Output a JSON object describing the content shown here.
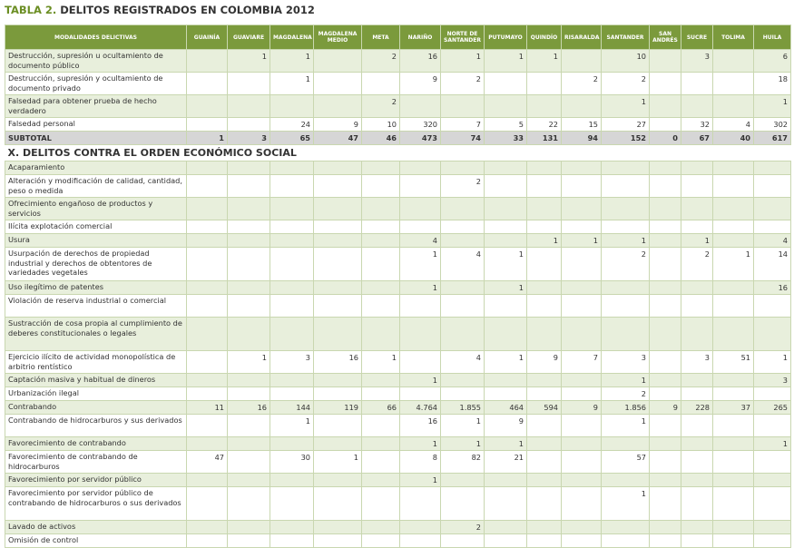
{
  "title": {
    "label": "TABLA 2.",
    "text": "DELITOS REGISTRADOS EN COLOMBIA 2012"
  },
  "table": {
    "header": [
      "MODALIDADES DELICTIVAS",
      "GUAINÍA",
      "GUAVIARE",
      "MAGDALENA",
      "MAGDALENA MEDIO",
      "META",
      "NARIÑO",
      "NORTE DE SANTANDER",
      "PUTUMAYO",
      "QUINDÍO",
      "RISARALDA",
      "SANTANDER",
      "SAN ANDRÉS",
      "SUCRE",
      "TOLIMA",
      "HUILA"
    ],
    "rows": [
      {
        "label": "Destrucción, supresión u ocultamiento de documento público",
        "cells": [
          null,
          "1",
          "1",
          null,
          "2",
          "16",
          "1",
          "1",
          "1",
          null,
          "10",
          null,
          "3",
          null,
          "6"
        ]
      },
      {
        "label": "Destrucción, supresión y ocultamiento de documento privado",
        "cells": [
          null,
          null,
          "1",
          null,
          null,
          "9",
          "2",
          null,
          null,
          "2",
          "2",
          null,
          null,
          null,
          "18"
        ]
      },
      {
        "label": "Falsedad para obtener prueba de hecho verdadero",
        "cells": [
          null,
          null,
          null,
          null,
          "2",
          null,
          null,
          null,
          null,
          null,
          "1",
          null,
          null,
          null,
          "1"
        ]
      },
      {
        "label": "Falsedad personal",
        "cells": [
          null,
          null,
          "24",
          "9",
          "10",
          "320",
          "7",
          "5",
          "22",
          "15",
          "27",
          null,
          "32",
          "4",
          "302"
        ]
      }
    ],
    "subtotal": {
      "label": "SUBTOTAL",
      "cells": [
        "1",
        "3",
        "65",
        "47",
        "46",
        "473",
        "74",
        "33",
        "131",
        "94",
        "152",
        "0",
        "67",
        "40",
        "617"
      ]
    },
    "section": "X. DELITOS CONTRA EL ORDEN ECONÓMICO SOCIAL",
    "section_rows": [
      {
        "label": "Acaparamiento",
        "cells": [
          null,
          null,
          null,
          null,
          null,
          null,
          null,
          null,
          null,
          null,
          null,
          null,
          null,
          null,
          null
        ]
      },
      {
        "label": "Alteración y modificación de calidad, cantidad, peso o medida",
        "cells": [
          null,
          null,
          null,
          null,
          null,
          null,
          "2",
          null,
          null,
          null,
          null,
          null,
          null,
          null,
          null
        ]
      },
      {
        "label": "Ofrecimiento engañoso de productos y servicios",
        "cells": [
          null,
          null,
          null,
          null,
          null,
          null,
          null,
          null,
          null,
          null,
          null,
          null,
          null,
          null,
          null
        ]
      },
      {
        "label": "Ilícita explotación comercial",
        "cells": [
          null,
          null,
          null,
          null,
          null,
          null,
          null,
          null,
          null,
          null,
          null,
          null,
          null,
          null,
          null
        ]
      },
      {
        "label": "Usura",
        "cells": [
          null,
          null,
          null,
          null,
          null,
          "4",
          null,
          null,
          "1",
          "1",
          "1",
          null,
          "1",
          null,
          "4"
        ]
      },
      {
        "label": "Usurpación de derechos de propiedad industrial y derechos de obtentores de variedades vegetales",
        "cells": [
          null,
          null,
          null,
          null,
          null,
          "1",
          "4",
          "1",
          null,
          null,
          "2",
          null,
          "2",
          "1",
          "14"
        ]
      },
      {
        "label": "Uso ilegítimo de patentes",
        "cells": [
          null,
          null,
          null,
          null,
          null,
          "1",
          null,
          "1",
          null,
          null,
          null,
          null,
          null,
          null,
          "16"
        ]
      },
      {
        "label": "Violación de reserva industrial o comercial",
        "cells": [
          null,
          null,
          null,
          null,
          null,
          null,
          null,
          null,
          null,
          null,
          null,
          null,
          null,
          null,
          null
        ]
      },
      {
        "label": "Sustracción  de cosa propia al cumplimiento de deberes constitucionales o legales",
        "cells": [
          null,
          null,
          null,
          null,
          null,
          null,
          null,
          null,
          null,
          null,
          null,
          null,
          null,
          null,
          null
        ]
      },
      {
        "label": "Ejercicio ilícito de actividad monopolística de arbitrio rentístico",
        "cells": [
          null,
          "1",
          "3",
          "16",
          "1",
          null,
          "4",
          "1",
          "9",
          "7",
          "3",
          null,
          "3",
          "51",
          "1"
        ]
      },
      {
        "label": "Captación masiva y habitual de dineros",
        "cells": [
          null,
          null,
          null,
          null,
          null,
          "1",
          null,
          null,
          null,
          null,
          "1",
          null,
          null,
          null,
          "3"
        ]
      },
      {
        "label": "Urbanización ilegal",
        "cells": [
          null,
          null,
          null,
          null,
          null,
          null,
          null,
          null,
          null,
          null,
          "2",
          null,
          null,
          null,
          null
        ]
      },
      {
        "label": "Contrabando",
        "cells": [
          "11",
          "16",
          "144",
          "119",
          "66",
          "4.764",
          "1.855",
          "464",
          "594",
          "9",
          "1.856",
          "9",
          "228",
          "37",
          "265"
        ]
      },
      {
        "label": "Contrabando de hidrocarburos y sus derivados",
        "cells": [
          null,
          null,
          "1",
          null,
          null,
          "16",
          "1",
          "9",
          null,
          null,
          "1",
          null,
          null,
          null,
          null
        ]
      },
      {
        "label": "Favorecimiento de contrabando",
        "cells": [
          null,
          null,
          null,
          null,
          null,
          "1",
          "1",
          "1",
          null,
          null,
          null,
          null,
          null,
          null,
          "1"
        ]
      },
      {
        "label": "Favorecimiento de contrabando de hidrocarburos",
        "cells": [
          "47",
          null,
          "30",
          "1",
          null,
          "8",
          "82",
          "21",
          null,
          null,
          "57",
          null,
          null,
          null,
          null
        ]
      },
      {
        "label": "Favorecimiento por servidor público",
        "cells": [
          null,
          null,
          null,
          null,
          null,
          "1",
          null,
          null,
          null,
          null,
          null,
          null,
          null,
          null,
          null
        ]
      },
      {
        "label": "Favorecimiento por servidor público de contrabando de hidrocarburos o sus derivados",
        "cells": [
          null,
          null,
          null,
          null,
          null,
          null,
          null,
          null,
          null,
          null,
          "1",
          null,
          null,
          null,
          null
        ]
      },
      {
        "label": "Lavado de activos",
        "cells": [
          null,
          null,
          null,
          null,
          null,
          null,
          "2",
          null,
          null,
          null,
          null,
          null,
          null,
          null,
          null
        ]
      },
      {
        "label": "Omisión de control",
        "cells": [
          null,
          null,
          null,
          null,
          null,
          null,
          null,
          null,
          null,
          null,
          null,
          null,
          null,
          null,
          null
        ]
      }
    ]
  }
}
